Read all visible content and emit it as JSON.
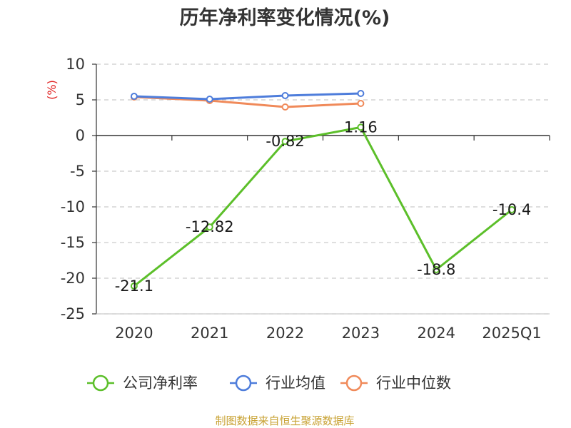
{
  "chart_data": {
    "type": "line",
    "title": "历年净利率变化情况(%)",
    "ylabel": "(%)",
    "xlabel": "",
    "categories": [
      "2020",
      "2021",
      "2022",
      "2023",
      "2024",
      "2025Q1"
    ],
    "ylim": [
      -25,
      10
    ],
    "yticks": [
      10,
      5,
      0,
      -5,
      -10,
      -15,
      -20,
      -25
    ],
    "grid": true,
    "legend_position": "bottom",
    "series": [
      {
        "name": "公司净利率",
        "color": "#5cbf2a",
        "values": [
          -21.1,
          -12.82,
          -0.82,
          1.16,
          -18.8,
          -10.4
        ],
        "labels": [
          "-21.1",
          "-12.82",
          "-0.82",
          "1.16",
          "-18.8",
          "-10.4"
        ],
        "show_labels": true
      },
      {
        "name": "行业均值",
        "color": "#4e7ddb",
        "values": [
          5.5,
          5.1,
          5.6,
          5.9,
          null,
          null
        ],
        "show_labels": false
      },
      {
        "name": "行业中位数",
        "color": "#f08a5a",
        "values": [
          5.4,
          4.9,
          4.0,
          4.5,
          null,
          null
        ],
        "show_labels": false
      }
    ]
  },
  "footer": {
    "source": "制图数据来自恒生聚源数据库"
  }
}
